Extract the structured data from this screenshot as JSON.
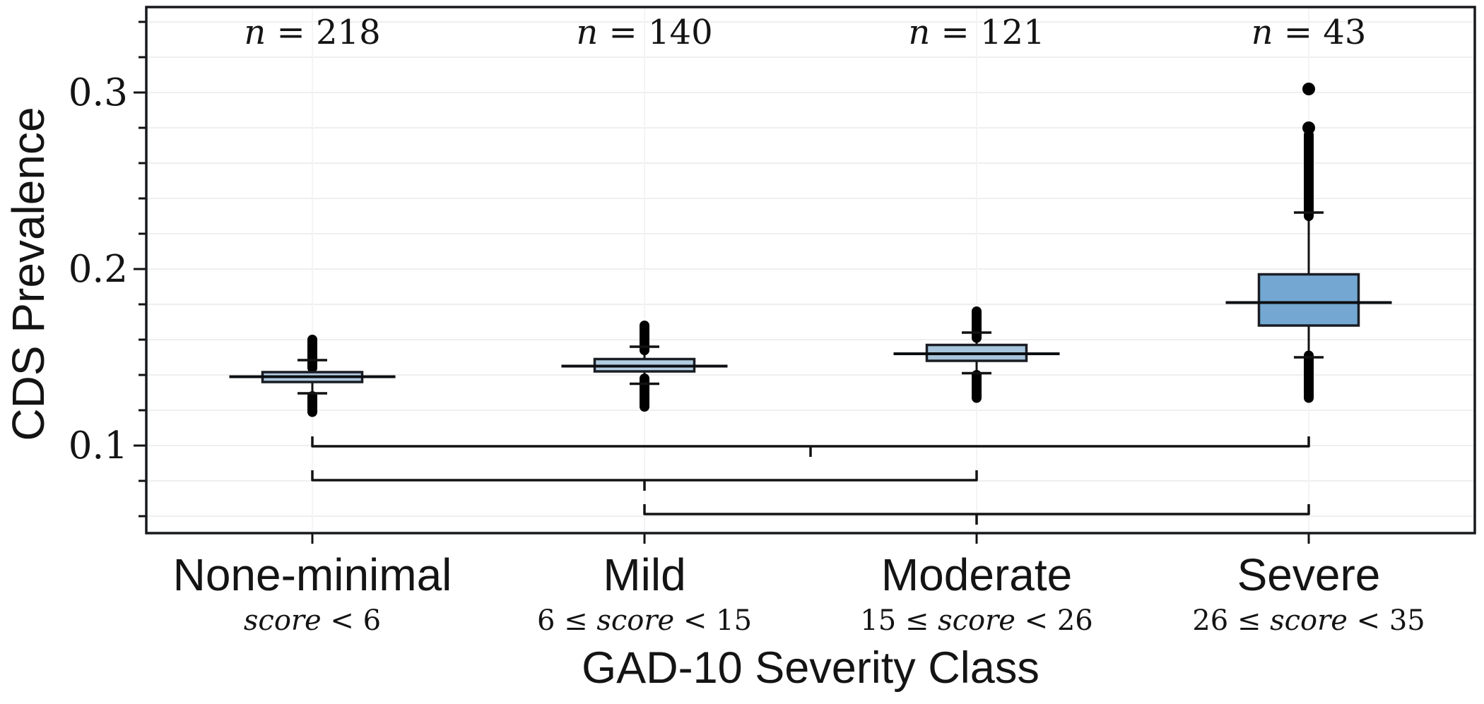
{
  "figure": {
    "background": "#ffffff"
  },
  "chart_data": {
    "type": "box",
    "title": "",
    "xlabel": "GAD-10 Severity Class",
    "ylabel": "CDS Prevalence",
    "ylim": [
      0.0504,
      0.3484
    ],
    "ytick_major": [
      0.1,
      0.2,
      0.3
    ],
    "ytick_labels": [
      "0.1",
      "0.2",
      "0.3"
    ],
    "ytick_minor_step": 0.02,
    "grid": true,
    "legend": "none",
    "categories": [
      {
        "label": "None-minimal",
        "sublabel": "score < 6",
        "n_label": "n = 218",
        "n": 218,
        "q1": 0.136,
        "median": 0.139,
        "q3": 0.1416,
        "whisker_low": 0.1296,
        "whisker_high": 0.1484,
        "outlier_run_high": [
          0.144,
          0.16
        ],
        "outlier_run_low": [
          0.119,
          0.128
        ],
        "outlier_dots": [],
        "fill": "#b2cce0"
      },
      {
        "label": "Mild",
        "sublabel": "6 ≤ score < 15",
        "n_label": "n = 140",
        "n": 140,
        "q1": 0.142,
        "median": 0.145,
        "q3": 0.149,
        "whisker_low": 0.135,
        "whisker_high": 0.156,
        "outlier_run_high": [
          0.154,
          0.168
        ],
        "outlier_run_low": [
          0.122,
          0.138
        ],
        "outlier_dots": [],
        "fill": "#b2cce0"
      },
      {
        "label": "Moderate",
        "sublabel": "15 ≤ score < 26",
        "n_label": "n = 121",
        "n": 121,
        "q1": 0.148,
        "median": 0.152,
        "q3": 0.157,
        "whisker_low": 0.141,
        "whisker_high": 0.164,
        "outlier_run_high": [
          0.161,
          0.176
        ],
        "outlier_run_low": [
          0.127,
          0.14
        ],
        "outlier_dots": [],
        "fill": "#a6c4db"
      },
      {
        "label": "Severe",
        "sublabel": "26 ≤ score < 35",
        "n_label": "n = 43",
        "n": 43,
        "q1": 0.168,
        "median": 0.181,
        "q3": 0.197,
        "whisker_low": 0.15,
        "whisker_high": 0.232,
        "outlier_run_high": [
          0.23,
          0.276
        ],
        "outlier_run_low": [
          0.127,
          0.151
        ],
        "outlier_dots": [
          0.28,
          0.302
        ],
        "fill": "#74a8d2"
      }
    ],
    "brackets": [
      {
        "from": 0,
        "to": 3,
        "y": 0.0996
      },
      {
        "from": 0,
        "to": 2,
        "y": 0.0804
      },
      {
        "from": 1,
        "to": 3,
        "y": 0.0612
      }
    ],
    "colors": {
      "box_edge": "#1a1d24",
      "median_line": "#0c0e12",
      "line": "#121212",
      "outlier": "#000000",
      "grid_h": "#efefef",
      "grid_v": "#f4f4f4",
      "text": "#141414"
    }
  }
}
